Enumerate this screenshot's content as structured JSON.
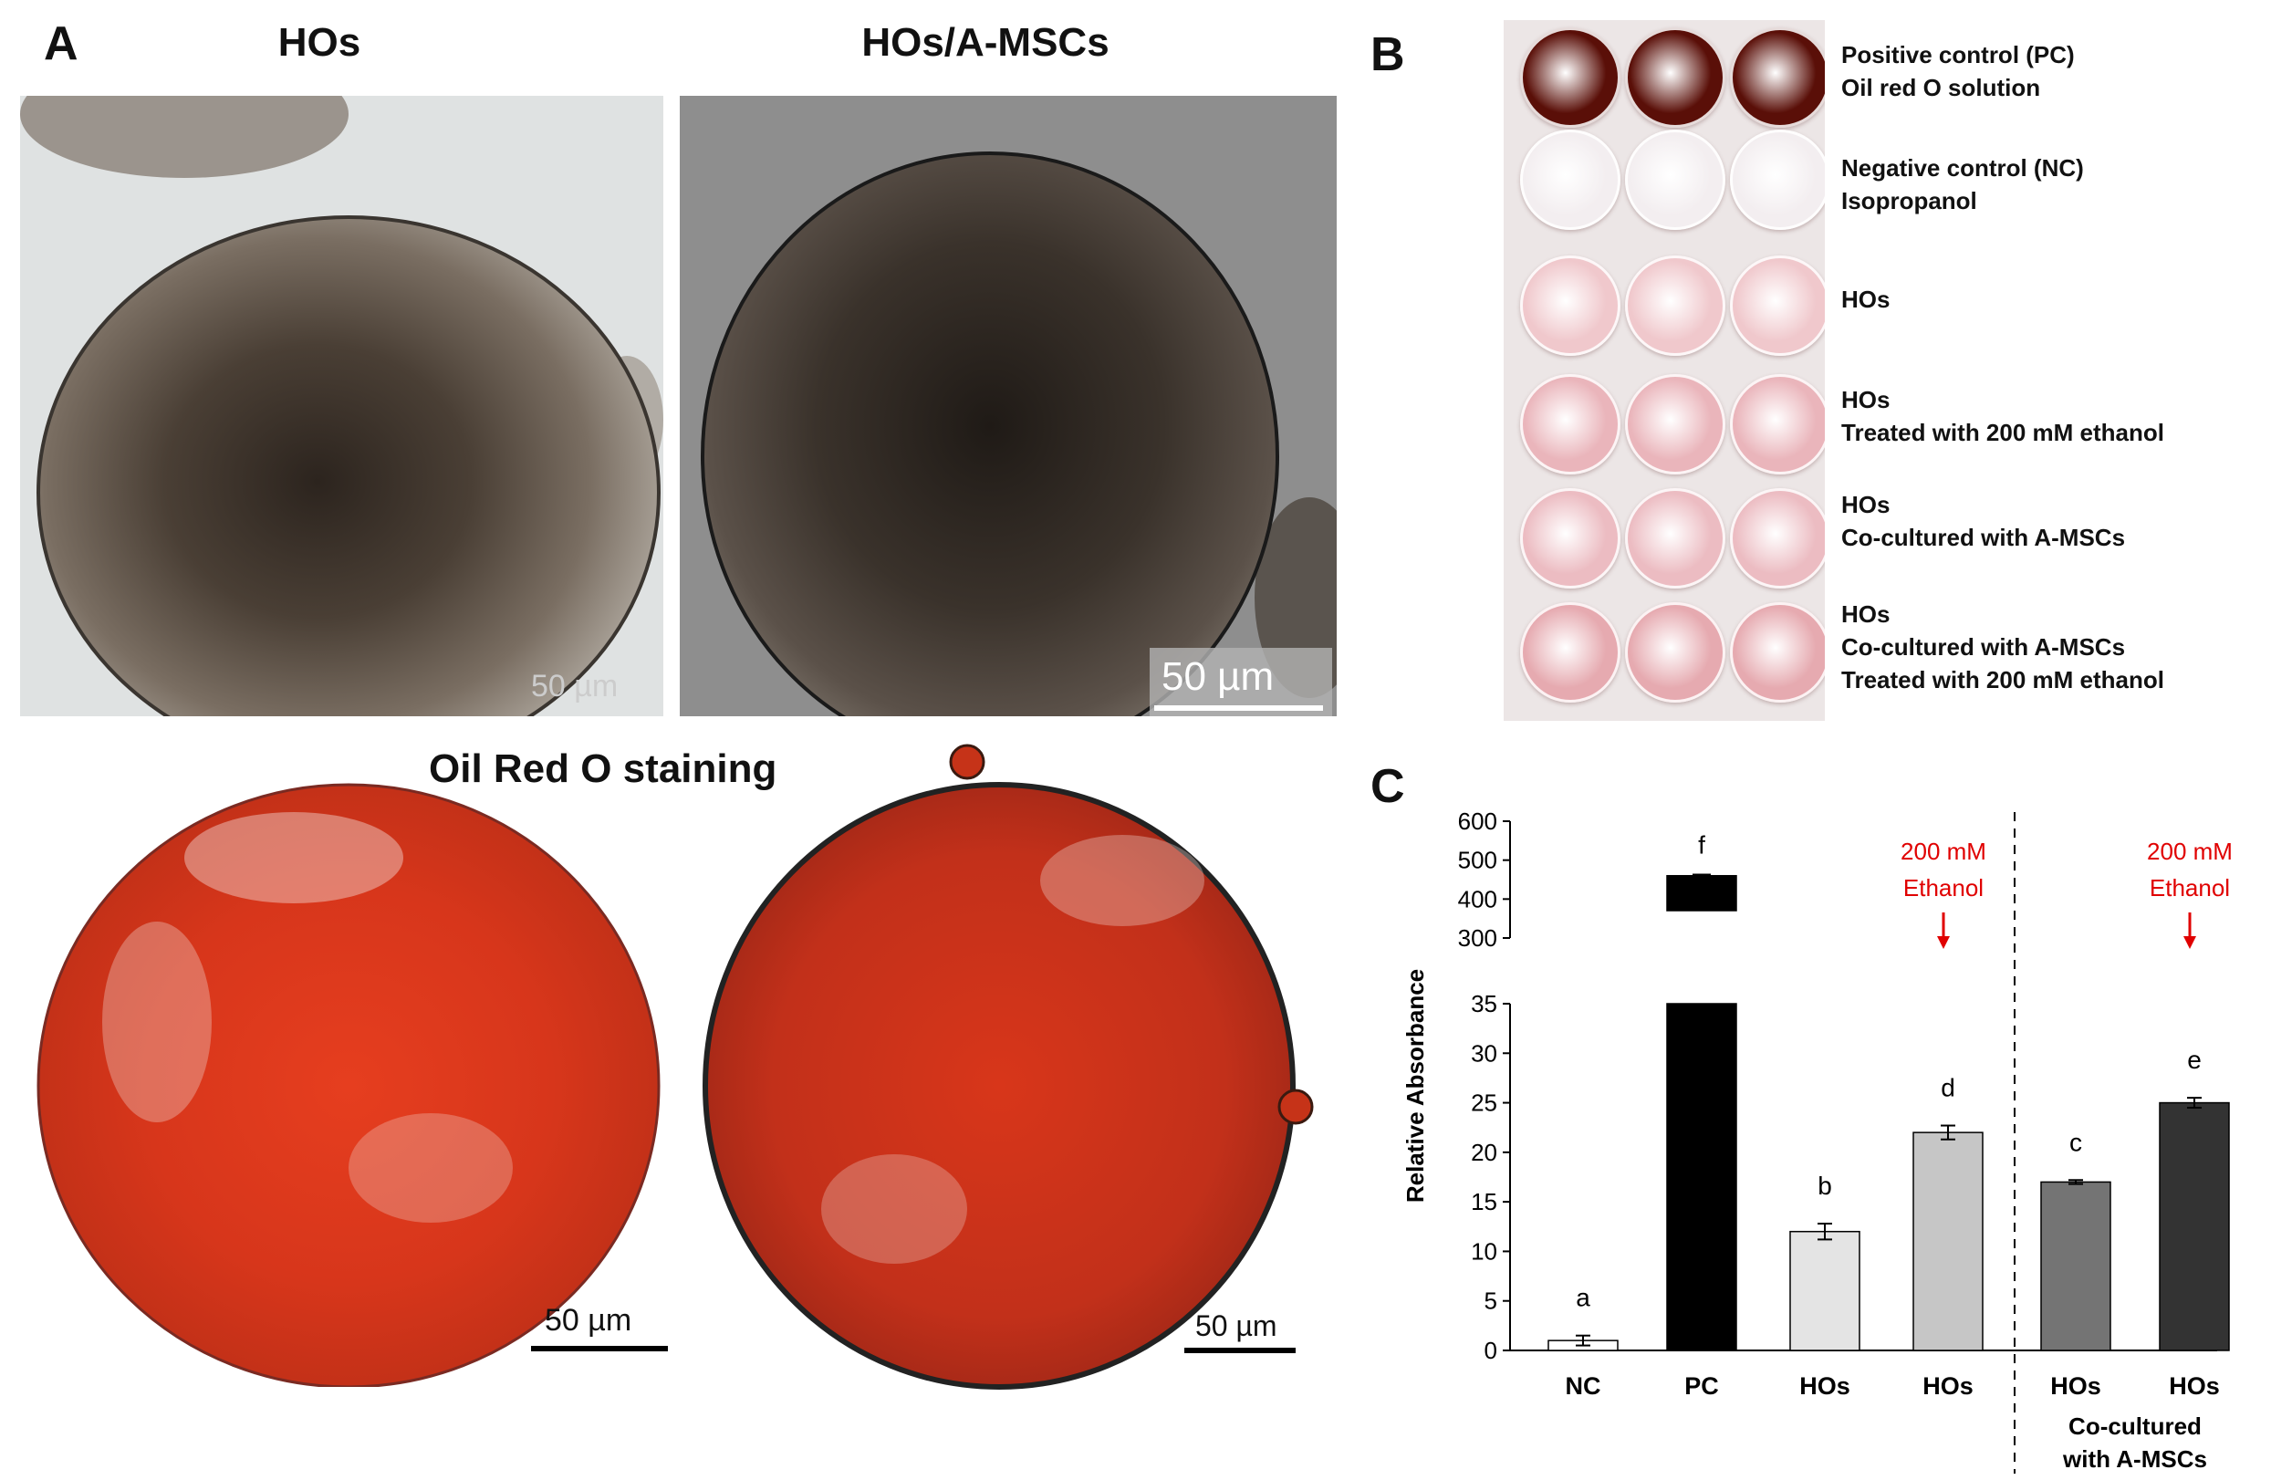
{
  "panel_a": {
    "letter": "A",
    "col1_title": "HOs",
    "col2_title": "HOs/A-MSCs",
    "staining_title": "Oil Red O staining",
    "scale_top_left": "50 µm",
    "scale_top_right": "50 µm",
    "scale_bottom_left": "50 µm",
    "scale_bottom_right": "50 µm"
  },
  "panel_b": {
    "letter": "B",
    "rows": [
      {
        "lines": [
          "Positive control (PC)",
          "Oil red O solution"
        ],
        "well_color": "#5a0f08"
      },
      {
        "lines": [
          "Negative control (NC)",
          "Isopropanol"
        ],
        "well_color": "#f3eef0"
      },
      {
        "lines": [
          "HOs"
        ],
        "well_color": "#f0c8cc"
      },
      {
        "lines": [
          "HOs",
          "Treated with 200 mM ethanol"
        ],
        "well_color": "#eab5bb"
      },
      {
        "lines": [
          "HOs",
          "Co-cultured with A-MSCs"
        ],
        "well_color": "#ecbcc2"
      },
      {
        "lines": [
          "HOs",
          "Co-cultured with A-MSCs",
          "Treated with 200 mM ethanol"
        ],
        "well_color": "#e6aab0"
      }
    ]
  },
  "panel_c": {
    "letter": "C",
    "annotation_line1": "200 mM",
    "annotation_line2": "Ethanol",
    "cocultured_line1": "Co-cultured",
    "cocultured_line2": "with A-MSCs"
  },
  "chart_data": {
    "type": "bar",
    "ylabel": "Relative Absorbance",
    "categories": [
      "NC",
      "PC",
      "HOs",
      "HOs",
      "HOs",
      "HOs"
    ],
    "values": [
      1,
      460,
      12,
      22,
      17,
      25
    ],
    "errors": [
      0.5,
      3,
      0.8,
      0.7,
      0.2,
      0.5
    ],
    "letters": [
      "a",
      "f",
      "b",
      "d",
      "c",
      "e"
    ],
    "colors": [
      "#ffffff",
      "#000000",
      "#e4e4e4",
      "#c6c6c6",
      "#747474",
      "#333333"
    ],
    "broken_axis": true,
    "ylim_lower": [
      0,
      35
    ],
    "ylim_upper": [
      300,
      600
    ],
    "yticks_lower": [
      0,
      5,
      10,
      15,
      20,
      25,
      30,
      35
    ],
    "yticks_upper": [
      300,
      400,
      500,
      600
    ],
    "annotated_bars": [
      3,
      5
    ],
    "annotation_color": "#e00000"
  }
}
